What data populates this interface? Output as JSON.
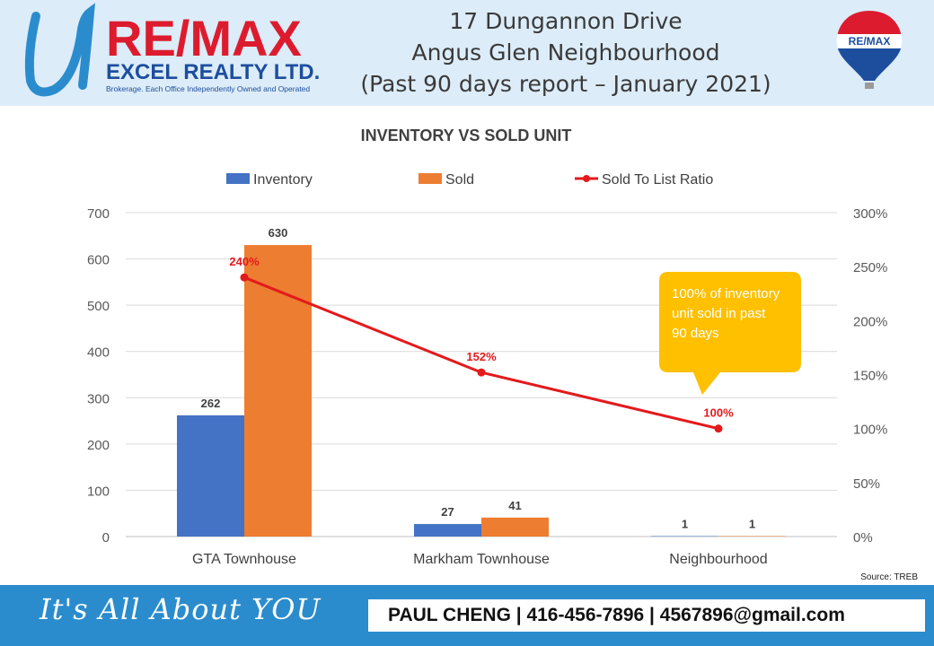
{
  "header": {
    "brand_main": "RE/MAX",
    "brand_sub": "EXCEL REALTY LTD.",
    "brand_tagline": "Brokerage. Each Office Independently Owned and Operated",
    "balloon_text": "RE/MAX",
    "title_lines": [
      "17 Dungannon Drive",
      "Angus Glen Neighbourhood",
      "(Past 90 days report – January 2021)"
    ]
  },
  "chart_data": {
    "type": "bar",
    "title": "INVENTORY VS SOLD UNIT",
    "categories": [
      "GTA Townhouse",
      "Markham Townhouse",
      "Neighbourhood"
    ],
    "series": [
      {
        "name": "Inventory",
        "kind": "bar",
        "axis": "left",
        "values": [
          262,
          27,
          1
        ],
        "color": "#4472c4"
      },
      {
        "name": "Sold",
        "kind": "bar",
        "axis": "left",
        "values": [
          630,
          41,
          1
        ],
        "color": "#ed7d31"
      },
      {
        "name": "Sold To List Ratio",
        "kind": "line",
        "axis": "right",
        "values": [
          240,
          152,
          100
        ],
        "labels": [
          "240%",
          "152%",
          "100%"
        ],
        "color": "#e31a1c"
      }
    ],
    "y_left": {
      "min": 0,
      "max": 700,
      "ticks": [
        "0",
        "100",
        "200",
        "300",
        "400",
        "500",
        "600",
        "700"
      ]
    },
    "y_right": {
      "min": 0,
      "max": 300,
      "ticks": [
        "0%",
        "50%",
        "100%",
        "150%",
        "200%",
        "250%",
        "300%"
      ]
    },
    "grid": true,
    "legend": "top",
    "callout": "100% of inventory unit sold in past 90 days",
    "source": "Source: TREB"
  },
  "footer": {
    "slogan": "It's All About YOU",
    "contact": "PAUL CHENG | 416-456-7896 | 4567896@gmail.com"
  },
  "colors": {
    "header_bg": "#dcecf8",
    "footer_bg": "#2b8ccd",
    "remax_red": "#dc1c2e",
    "remax_blue": "#1d4e9e",
    "callout": "#ffc000"
  }
}
